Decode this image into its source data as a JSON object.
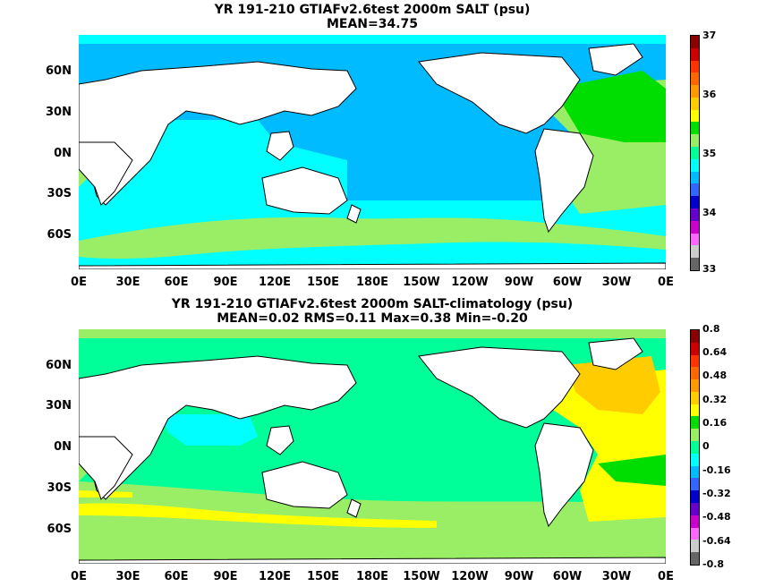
{
  "panel1": {
    "title_line1": "YR 191-210 GTIAFv2.6test 2000m SALT (psu)",
    "title_line2": "MEAN=34.75",
    "lat_labels": [
      "60N",
      "30N",
      "0N",
      "30S",
      "60S"
    ],
    "lon_labels": [
      "0E",
      "30E",
      "60E",
      "90E",
      "120E",
      "150E",
      "180E",
      "150W",
      "120W",
      "90W",
      "60W",
      "30W",
      "0E"
    ],
    "colorbar_labels": [
      "37",
      "36",
      "35",
      "34",
      "33"
    ],
    "colorbar_colors": [
      "#8b0000",
      "#cc0000",
      "#ff3300",
      "#ff6600",
      "#ff9900",
      "#ffcc00",
      "#ffff00",
      "#00dd00",
      "#99ee66",
      "#00ff99",
      "#00ffff",
      "#00bbff",
      "#3366ff",
      "#0000cc",
      "#6600cc",
      "#cc00cc",
      "#ff66ff",
      "#cccccc",
      "#666666"
    ]
  },
  "panel2": {
    "title_line1": "YR 191-210 GTIAFv2.6test 2000m SALT-climatology (psu)",
    "title_line2": "MEAN=0.02   RMS=0.11   Max=0.38   Min=-0.20",
    "lat_labels": [
      "60N",
      "30N",
      "0N",
      "30S",
      "60S"
    ],
    "lon_labels": [
      "0E",
      "30E",
      "60E",
      "90E",
      "120E",
      "150E",
      "180E",
      "150W",
      "120W",
      "90W",
      "60W",
      "30W",
      "0E"
    ],
    "colorbar_labels": [
      "0.8",
      "0.64",
      "0.48",
      "0.32",
      "0.16",
      "0",
      "-0.16",
      "-0.32",
      "-0.48",
      "-0.64",
      "-0.8"
    ],
    "colorbar_colors": [
      "#8b0000",
      "#cc0000",
      "#ff3300",
      "#ff6600",
      "#ff9900",
      "#ffcc00",
      "#ffff00",
      "#00dd00",
      "#99ee66",
      "#00ff99",
      "#00ffff",
      "#00bbff",
      "#3366ff",
      "#0000cc",
      "#6600cc",
      "#cc00cc",
      "#ff66ff",
      "#cccccc",
      "#666666"
    ]
  },
  "colors": {
    "land": "#ffffff",
    "p1_ocean": "#00bbff",
    "p1_indian": "#00ffff",
    "p1_south": "#00ffff",
    "p1_southband": "#99ee66",
    "p1_atlantic": "#99ee66",
    "p1_north_atl": "#00dd00",
    "p2_ocean": "#00ff99",
    "p2_south": "#99ee66",
    "p2_band": "#ffff00",
    "p2_atlantic": "#ffff00",
    "p2_natl": "#ffcc00",
    "p2_indian_n": "#00ffff"
  }
}
